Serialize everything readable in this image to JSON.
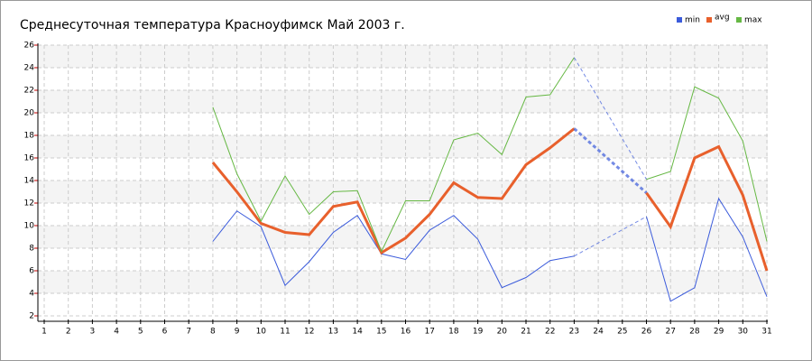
{
  "chart_data": {
    "type": "line",
    "title": "Среднесуточная температура Красноуфимск  Май 2003 г.",
    "x": [
      1,
      2,
      3,
      4,
      5,
      6,
      7,
      8,
      9,
      10,
      11,
      12,
      13,
      14,
      15,
      16,
      17,
      18,
      19,
      20,
      21,
      22,
      23,
      24,
      25,
      26,
      27,
      28,
      29,
      30,
      31
    ],
    "series": [
      {
        "name": "min",
        "color": "#3b5bdb",
        "values": [
          null,
          null,
          null,
          null,
          null,
          null,
          null,
          8.6,
          11.3,
          9.9,
          4.7,
          6.8,
          9.4,
          10.9,
          7.5,
          7.0,
          9.6,
          10.9,
          8.8,
          4.5,
          5.4,
          6.9,
          7.3,
          null,
          null,
          10.8,
          3.3,
          4.5,
          12.4,
          9.0,
          3.7
        ]
      },
      {
        "name": "avg",
        "color": "#e8602c",
        "values": [
          null,
          null,
          null,
          null,
          null,
          null,
          null,
          15.6,
          13.0,
          10.2,
          9.4,
          9.2,
          11.7,
          12.1,
          7.6,
          8.9,
          11.0,
          13.8,
          12.5,
          12.4,
          15.4,
          16.9,
          18.6,
          null,
          null,
          12.9,
          9.9,
          16.0,
          17.0,
          12.7,
          6.0
        ]
      },
      {
        "name": "max",
        "color": "#66b844",
        "values": [
          null,
          null,
          null,
          null,
          null,
          null,
          null,
          20.5,
          14.6,
          10.4,
          14.4,
          11.0,
          13.0,
          13.1,
          7.7,
          12.2,
          12.2,
          17.6,
          18.2,
          16.3,
          21.4,
          21.6,
          24.9,
          null,
          null,
          14.1,
          14.8,
          22.3,
          21.3,
          17.5,
          8.6
        ]
      }
    ],
    "xlim": [
      1,
      31
    ],
    "xticks": [
      1,
      2,
      3,
      4,
      5,
      6,
      7,
      8,
      9,
      10,
      11,
      12,
      13,
      14,
      15,
      16,
      17,
      18,
      19,
      20,
      21,
      22,
      23,
      24,
      25,
      26,
      27,
      28,
      29,
      30,
      31
    ],
    "ylim": [
      2,
      26
    ],
    "yticks": [
      2,
      4,
      6,
      8,
      10,
      12,
      14,
      16,
      18,
      20,
      22,
      24,
      26
    ],
    "grid": true,
    "legend": "top-right"
  }
}
